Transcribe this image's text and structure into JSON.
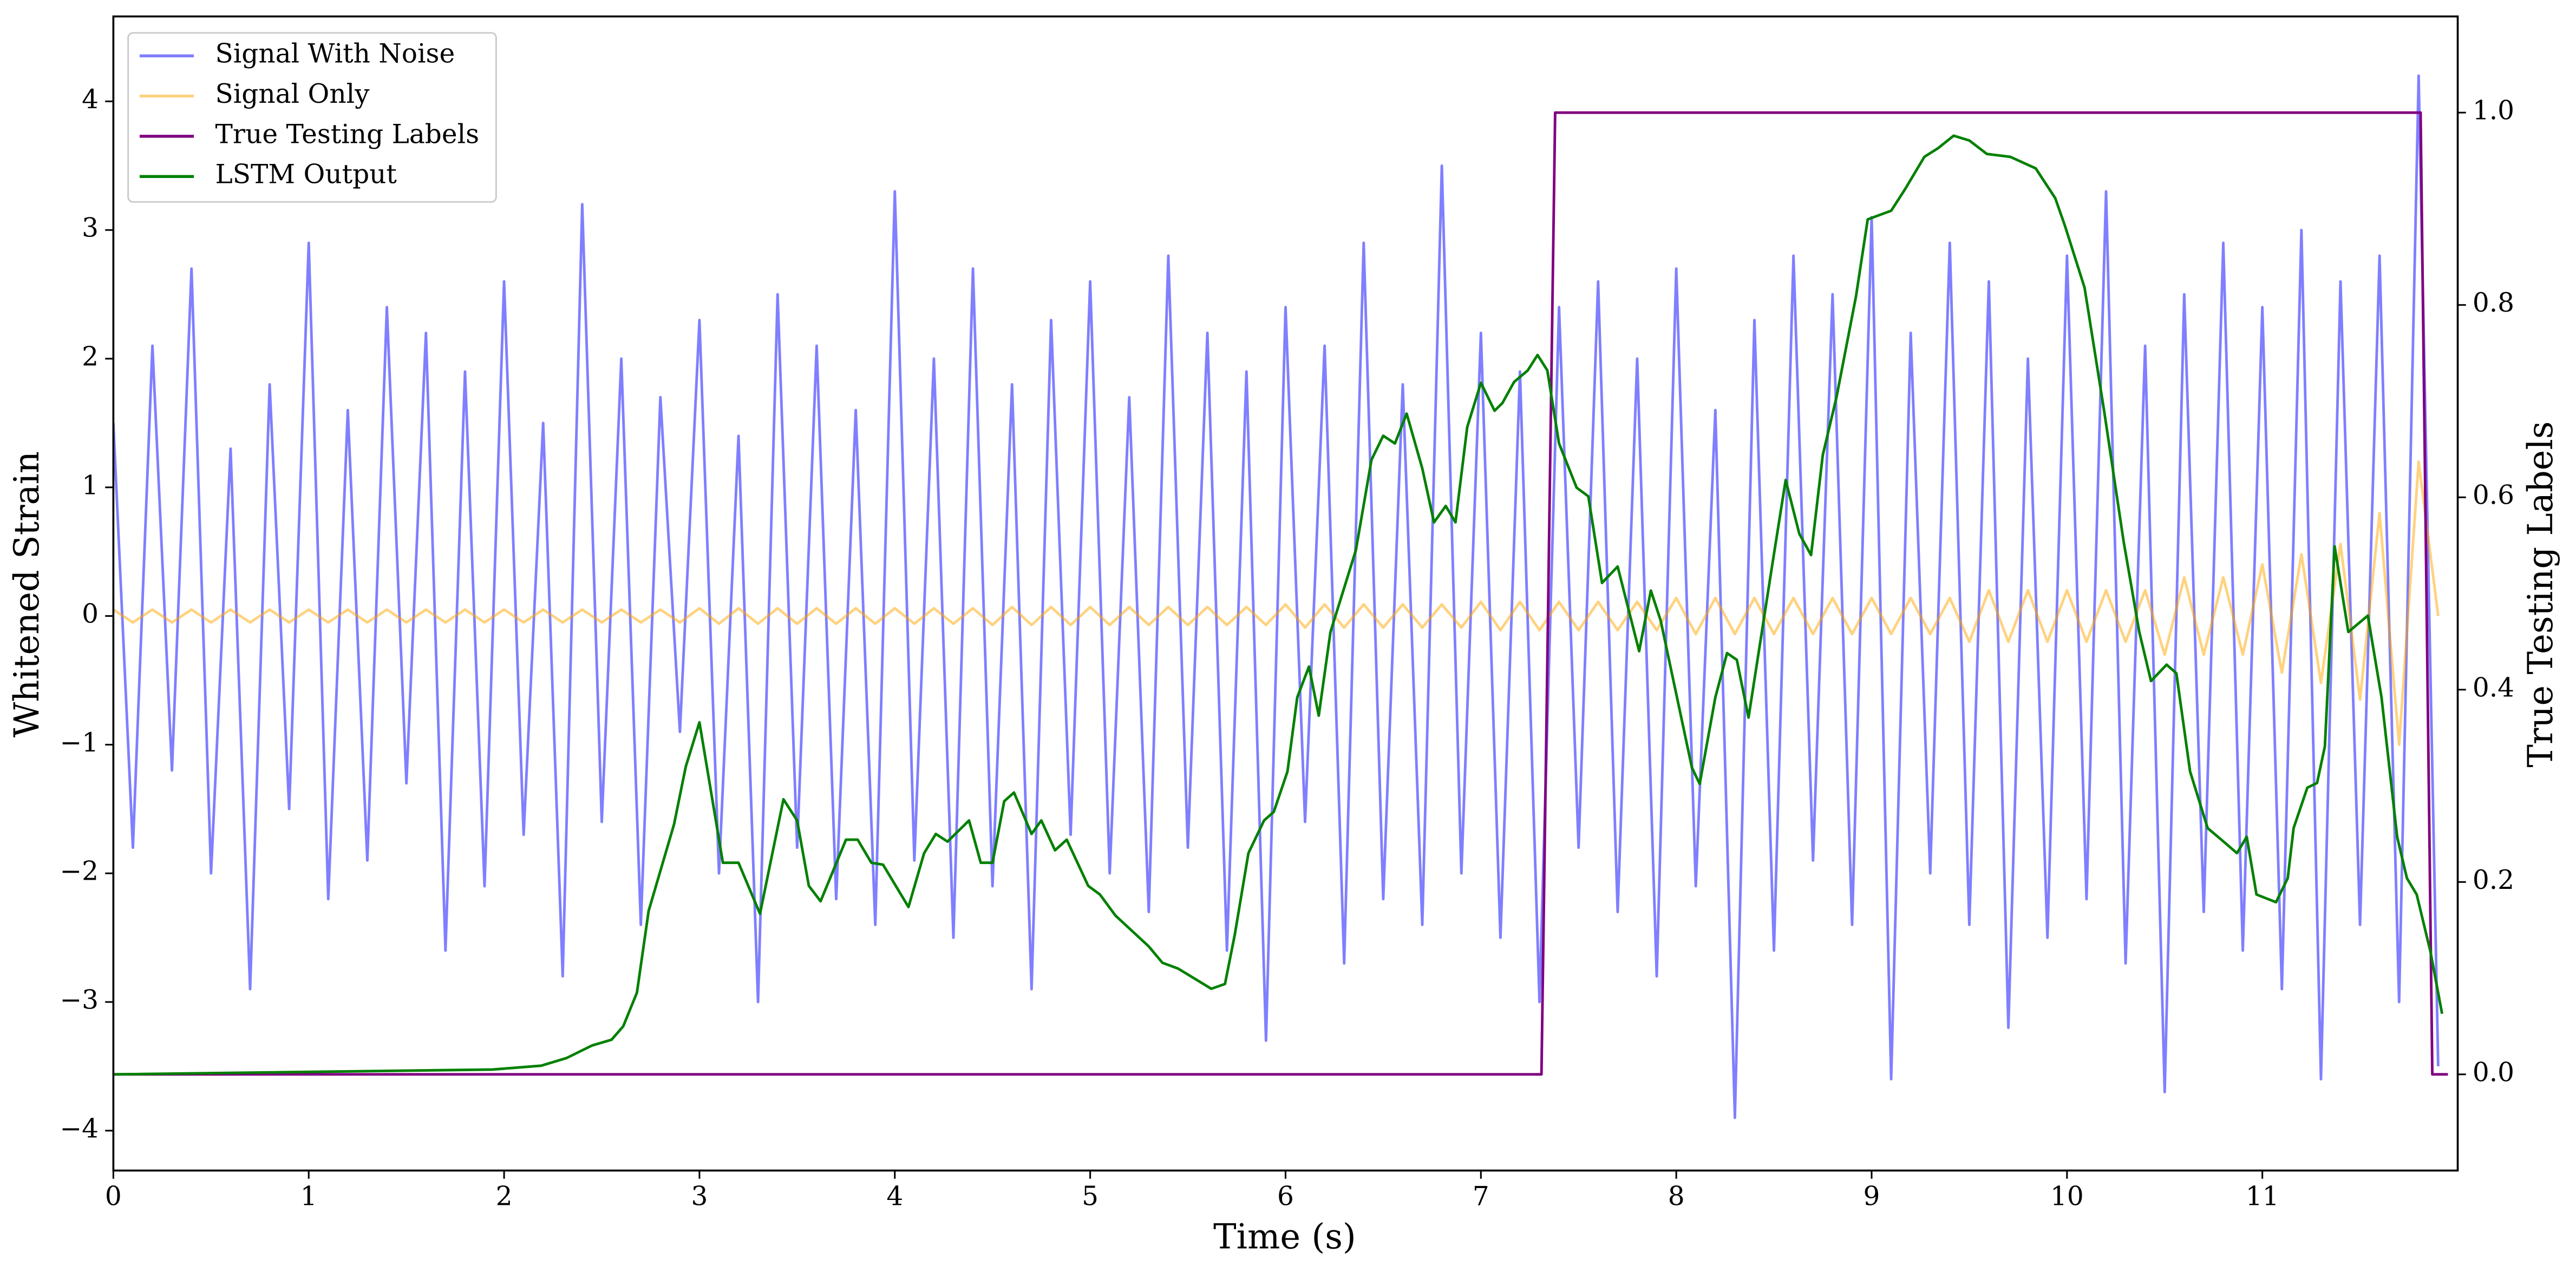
{
  "chart_data": {
    "type": "line",
    "xlabel": "Time (s)",
    "ylabel": "Whitened Strain",
    "y2label": "True Testing Labels",
    "xlim": [
      0,
      12
    ],
    "xticks": [
      0,
      1,
      2,
      3,
      4,
      5,
      6,
      7,
      8,
      9,
      10,
      11
    ],
    "ylim": [
      -4.31,
      4.66
    ],
    "yticks": [
      {
        "value": -4,
        "label": "−4"
      },
      {
        "value": -3,
        "label": "−3"
      },
      {
        "value": -2,
        "label": "−2"
      },
      {
        "value": -1,
        "label": "−1"
      },
      0,
      1,
      2,
      3,
      4
    ],
    "y2lim": [
      -0.1,
      1.1
    ],
    "y2ticks": [
      {
        "value": 0,
        "label": "0.0"
      },
      {
        "value": 0.2,
        "label": "0.2"
      },
      {
        "value": 0.4,
        "label": "0.4"
      },
      {
        "value": 0.6,
        "label": "0.6"
      },
      {
        "value": 0.8,
        "label": "0.8"
      },
      {
        "value": 1,
        "label": "1.0"
      }
    ],
    "legend": "upper left",
    "series": [
      {
        "name": "Signal With Noise",
        "color": "#0000ff",
        "alpha": 0.5,
        "x": [
          0,
          0.1,
          0.2,
          0.3,
          0.4,
          0.5,
          0.6,
          0.7,
          0.8,
          0.9,
          1,
          1.1,
          1.2,
          1.3,
          1.4,
          1.5,
          1.6,
          1.7,
          1.8,
          1.9,
          2,
          2.1,
          2.2,
          2.3,
          2.4,
          2.5,
          2.6,
          2.7,
          2.8,
          2.9,
          3,
          3.1,
          3.2,
          3.3,
          3.4,
          3.5,
          3.6,
          3.7,
          3.8,
          3.9,
          4,
          4.1,
          4.2,
          4.3,
          4.4,
          4.5,
          4.6,
          4.7,
          4.8,
          4.9,
          5,
          5.1,
          5.2,
          5.3,
          5.4,
          5.5,
          5.6,
          5.7,
          5.8,
          5.9,
          6,
          6.1,
          6.2,
          6.3,
          6.4,
          6.5,
          6.6,
          6.7,
          6.8,
          6.9,
          7,
          7.1,
          7.2,
          7.3,
          7.4,
          7.5,
          7.6,
          7.7,
          7.8,
          7.9,
          8,
          8.1,
          8.2,
          8.3,
          8.4,
          8.5,
          8.6,
          8.7,
          8.8,
          8.9,
          9,
          9.1,
          9.2,
          9.3,
          9.4,
          9.5,
          9.6,
          9.7,
          9.8,
          9.9,
          10,
          10.1,
          10.2,
          10.3,
          10.4,
          10.5,
          10.6,
          10.7,
          10.8,
          10.9,
          11,
          11.1,
          11.2,
          11.3,
          11.4,
          11.5,
          11.6,
          11.7,
          11.8,
          11.9
        ],
        "values": [
          1.5,
          -1.8,
          2.1,
          -1.2,
          2.7,
          -2.0,
          1.3,
          -2.9,
          1.8,
          -1.5,
          2.9,
          -2.2,
          1.6,
          -1.9,
          2.4,
          -1.3,
          2.2,
          -2.6,
          1.9,
          -2.1,
          2.6,
          -1.7,
          1.5,
          -2.8,
          3.2,
          -1.6,
          2.0,
          -2.4,
          1.7,
          -0.9,
          2.3,
          -2.0,
          1.4,
          -3.0,
          2.5,
          -1.8,
          2.1,
          -2.2,
          1.6,
          -2.4,
          3.3,
          -1.9,
          2.0,
          -2.5,
          2.7,
          -2.1,
          1.8,
          -2.9,
          2.3,
          -1.7,
          2.6,
          -2.0,
          1.7,
          -2.3,
          2.8,
          -1.8,
          2.2,
          -2.6,
          1.9,
          -3.3,
          2.4,
          -1.6,
          2.1,
          -2.7,
          2.9,
          -2.2,
          1.8,
          -2.4,
          3.5,
          -2.0,
          2.2,
          -2.5,
          1.9,
          -3.0,
          2.4,
          -1.8,
          2.6,
          -2.3,
          2.0,
          -2.8,
          2.7,
          -2.1,
          1.6,
          -3.9,
          2.3,
          -2.6,
          2.8,
          -1.9,
          2.5,
          -2.4,
          3.1,
          -3.6,
          2.2,
          -2.0,
          2.9,
          -2.4,
          2.6,
          -3.2,
          2.0,
          -2.5,
          2.8,
          -2.2,
          3.3,
          -2.7,
          2.1,
          -3.7,
          2.5,
          -2.3,
          2.9,
          -2.6,
          2.4,
          -2.9,
          3.0,
          -3.6,
          2.6,
          -2.4,
          2.8,
          -3.0,
          4.2,
          -3.5
        ]
      },
      {
        "name": "Signal Only",
        "color": "#ffa500",
        "alpha": 0.5,
        "x": [
          0,
          0.1,
          0.2,
          0.3,
          0.4,
          0.5,
          0.6,
          0.7,
          0.8,
          0.9,
          1,
          1.1,
          1.2,
          1.3,
          1.4,
          1.5,
          1.6,
          1.7,
          1.8,
          1.9,
          2,
          2.1,
          2.2,
          2.3,
          2.4,
          2.5,
          2.6,
          2.7,
          2.8,
          2.9,
          3,
          3.1,
          3.2,
          3.3,
          3.4,
          3.5,
          3.6,
          3.7,
          3.8,
          3.9,
          4,
          4.1,
          4.2,
          4.3,
          4.4,
          4.5,
          4.6,
          4.7,
          4.8,
          4.9,
          5,
          5.1,
          5.2,
          5.3,
          5.4,
          5.5,
          5.6,
          5.7,
          5.8,
          5.9,
          6,
          6.1,
          6.2,
          6.3,
          6.4,
          6.5,
          6.6,
          6.7,
          6.8,
          6.9,
          7,
          7.1,
          7.2,
          7.3,
          7.4,
          7.5,
          7.6,
          7.7,
          7.8,
          7.9,
          8,
          8.1,
          8.2,
          8.3,
          8.4,
          8.5,
          8.6,
          8.7,
          8.8,
          8.9,
          9,
          9.1,
          9.2,
          9.3,
          9.4,
          9.5,
          9.6,
          9.7,
          9.8,
          9.9,
          10,
          10.1,
          10.2,
          10.3,
          10.4,
          10.5,
          10.6,
          10.7,
          10.8,
          10.9,
          11,
          11.1,
          11.2,
          11.3,
          11.4,
          11.5,
          11.6,
          11.7,
          11.8,
          11.9
        ],
        "values": [
          0.05,
          -0.05,
          0.05,
          -0.05,
          0.05,
          -0.05,
          0.05,
          -0.05,
          0.05,
          -0.05,
          0.05,
          -0.05,
          0.05,
          -0.05,
          0.05,
          -0.05,
          0.05,
          -0.05,
          0.05,
          -0.05,
          0.05,
          -0.05,
          0.05,
          -0.05,
          0.05,
          -0.05,
          0.05,
          -0.05,
          0.05,
          -0.05,
          0.06,
          -0.06,
          0.06,
          -0.06,
          0.06,
          -0.06,
          0.06,
          -0.06,
          0.06,
          -0.06,
          0.06,
          -0.06,
          0.06,
          -0.06,
          0.06,
          -0.07,
          0.07,
          -0.07,
          0.07,
          -0.07,
          0.07,
          -0.07,
          0.07,
          -0.07,
          0.07,
          -0.07,
          0.07,
          -0.07,
          0.07,
          -0.07,
          0.09,
          -0.09,
          0.09,
          -0.09,
          0.09,
          -0.09,
          0.09,
          -0.09,
          0.09,
          -0.09,
          0.11,
          -0.11,
          0.11,
          -0.11,
          0.11,
          -0.11,
          0.11,
          -0.11,
          0.11,
          -0.11,
          0.14,
          -0.14,
          0.14,
          -0.14,
          0.14,
          -0.14,
          0.14,
          -0.14,
          0.14,
          -0.14,
          0.14,
          -0.14,
          0.14,
          -0.14,
          0.14,
          -0.2,
          0.2,
          -0.2,
          0.2,
          -0.2,
          0.2,
          -0.2,
          0.2,
          -0.2,
          0.2,
          -0.3,
          0.3,
          -0.3,
          0.3,
          -0.3,
          0.4,
          -0.44,
          0.48,
          -0.52,
          0.56,
          -0.65,
          0.8,
          -1.0,
          1.2,
          0
        ]
      },
      {
        "name": "True Testing Labels",
        "color": "#800080",
        "axis": "y2",
        "x": [
          0,
          7.31,
          7.38,
          11.81,
          11.87,
          11.95
        ],
        "values": [
          0,
          0,
          1,
          1,
          0,
          0
        ]
      },
      {
        "name": "LSTM Output",
        "color": "#008000",
        "axis": "y2",
        "x": [
          0,
          1.94,
          2.19,
          2.32,
          2.45,
          2.55,
          2.61,
          2.68,
          2.74,
          2.87,
          2.93,
          3.0,
          3.12,
          3.2,
          3.31,
          3.43,
          3.5,
          3.56,
          3.62,
          3.75,
          3.81,
          3.88,
          3.94,
          4.07,
          4.15,
          4.21,
          4.27,
          4.38,
          4.44,
          4.5,
          4.56,
          4.61,
          4.7,
          4.75,
          4.82,
          4.88,
          4.99,
          5.05,
          5.13,
          5.3,
          5.37,
          5.45,
          5.62,
          5.69,
          5.74,
          5.81,
          5.89,
          5.94,
          6.01,
          6.06,
          6.12,
          6.17,
          6.23,
          6.36,
          6.44,
          6.5,
          6.56,
          6.62,
          6.7,
          6.76,
          6.82,
          6.87,
          6.93,
          7.0,
          7.07,
          7.11,
          7.17,
          7.24,
          7.29,
          7.34,
          7.4,
          7.49,
          7.55,
          7.62,
          7.7,
          7.81,
          7.87,
          7.92,
          8.08,
          8.12,
          8.2,
          8.26,
          8.31,
          8.37,
          8.49,
          8.56,
          8.63,
          8.69,
          8.75,
          8.82,
          8.92,
          8.98,
          9.1,
          9.17,
          9.27,
          9.34,
          9.42,
          9.5,
          9.59,
          9.71,
          9.84,
          9.94,
          9.99,
          10.09,
          10.19,
          10.29,
          10.37,
          10.43,
          10.51,
          10.56,
          10.63,
          10.72,
          10.79,
          10.87,
          10.92,
          10.97,
          11.07,
          11.13,
          11.16,
          11.23,
          11.28,
          11.32,
          11.37,
          11.44,
          11.54,
          11.61,
          11.69,
          11.74,
          11.79,
          11.86,
          11.92
        ],
        "values": [
          0,
          0.005,
          0.009,
          0.017,
          0.03,
          0.036,
          0.05,
          0.085,
          0.17,
          0.26,
          0.32,
          0.366,
          0.22,
          0.22,
          0.167,
          0.286,
          0.264,
          0.196,
          0.18,
          0.244,
          0.244,
          0.22,
          0.218,
          0.174,
          0.23,
          0.25,
          0.242,
          0.264,
          0.22,
          0.22,
          0.284,
          0.293,
          0.25,
          0.264,
          0.233,
          0.244,
          0.196,
          0.187,
          0.165,
          0.133,
          0.116,
          0.11,
          0.089,
          0.094,
          0.145,
          0.23,
          0.264,
          0.273,
          0.315,
          0.392,
          0.424,
          0.373,
          0.46,
          0.545,
          0.639,
          0.664,
          0.656,
          0.687,
          0.63,
          0.574,
          0.591,
          0.574,
          0.673,
          0.719,
          0.69,
          0.698,
          0.72,
          0.732,
          0.748,
          0.732,
          0.656,
          0.61,
          0.601,
          0.511,
          0.528,
          0.44,
          0.503,
          0.472,
          0.319,
          0.302,
          0.392,
          0.438,
          0.431,
          0.371,
          0.528,
          0.618,
          0.562,
          0.54,
          0.644,
          0.704,
          0.809,
          0.889,
          0.898,
          0.92,
          0.954,
          0.963,
          0.976,
          0.971,
          0.957,
          0.954,
          0.942,
          0.911,
          0.882,
          0.818,
          0.69,
          0.554,
          0.46,
          0.409,
          0.426,
          0.417,
          0.315,
          0.256,
          0.244,
          0.23,
          0.247,
          0.187,
          0.179,
          0.204,
          0.256,
          0.298,
          0.303,
          0.341,
          0.549,
          0.46,
          0.477,
          0.392,
          0.247,
          0.204,
          0.187,
          0.128,
          0.063
        ]
      }
    ]
  }
}
